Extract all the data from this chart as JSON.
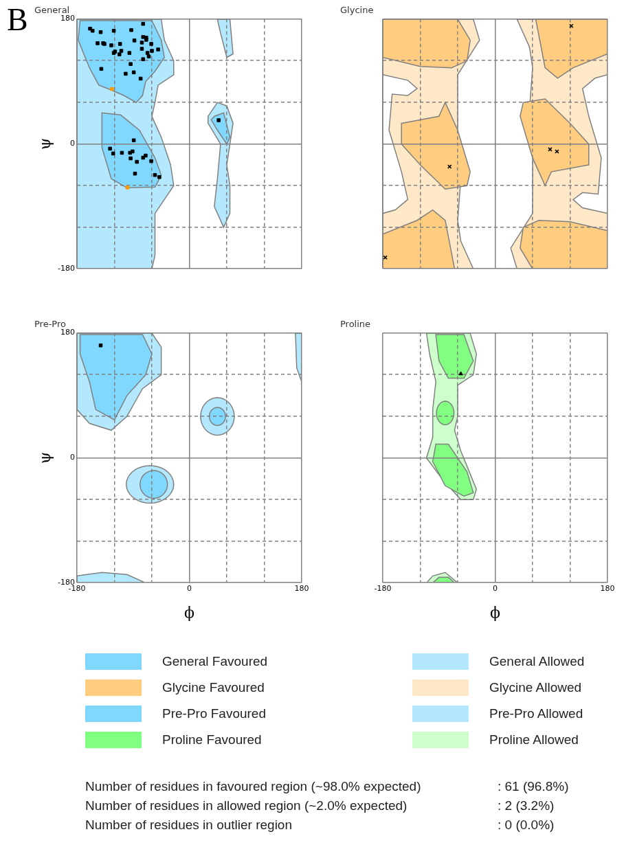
{
  "chart_data": [
    {
      "type": "scatter",
      "title": "General",
      "ylabel": "ψ",
      "annotations": [
        "B"
      ],
      "xlim": [
        -180,
        180
      ],
      "ylim": [
        -180,
        180
      ],
      "xticks": [
        -180,
        {
          "value": -120,
          "label": null
        },
        {
          "value": -60,
          "label": null
        },
        0,
        {
          "value": 60,
          "label": null
        },
        {
          "value": 120,
          "label": null
        },
        180
      ],
      "yticks": [
        -180,
        {
          "value": -120,
          "label": null
        },
        {
          "value": -60,
          "label": null
        },
        0,
        {
          "value": 60,
          "label": null
        },
        {
          "value": 120,
          "label": null
        },
        180
      ],
      "grid": true,
      "tick_labels": "y",
      "series": [
        {
          "color": "#000000",
          "marker": "square",
          "x": [
            -159,
            -155,
            -142,
            -121,
            -93,
            -74,
            -147,
            -138,
            -136,
            -125,
            -111,
            -88,
            -74,
            -69,
            -69,
            -76,
            -61,
            -50,
            -76,
            -67,
            -60,
            -65,
            -74,
            -96,
            -119,
            -112,
            -109,
            -121,
            -94,
            -141,
            -102,
            -89,
            -78,
            -89,
            -127,
            -122,
            -108,
            -95,
            -91,
            -94,
            -74,
            -70,
            -84,
            -61,
            -87,
            -55,
            -48,
            47
          ],
          "values": [
            166,
            163,
            161,
            163,
            164,
            173,
            145,
            145,
            144,
            142,
            144,
            149,
            154,
            153,
            150,
            146,
            144,
            136,
            137,
            131,
            134,
            126,
            122,
            131,
            133,
            129,
            134,
            131,
            115,
            108,
            101,
            103,
            94,
            5,
            -7,
            -14,
            -13,
            -13,
            -11,
            -21,
            -20,
            -17,
            -26,
            -25,
            -43,
            -45,
            -48,
            34
          ]
        },
        {
          "color": "#ff9900",
          "marker": "square",
          "x": [
            -124,
            -99
          ],
          "values": [
            79,
            -63
          ]
        }
      ]
    },
    {
      "type": "scatter",
      "title": "Glycine",
      "xlim": [
        -180,
        180
      ],
      "ylim": [
        -180,
        180
      ],
      "xticks": [
        -180,
        {
          "value": -120,
          "label": null
        },
        {
          "value": -60,
          "label": null
        },
        0,
        {
          "value": 60,
          "label": null
        },
        {
          "value": 120,
          "label": null
        },
        180
      ],
      "yticks": [
        -180,
        {
          "value": -120,
          "label": null
        },
        {
          "value": -60,
          "label": null
        },
        0,
        {
          "value": 60,
          "label": null
        },
        {
          "value": 120,
          "label": null
        },
        180
      ],
      "grid": true,
      "tick_labels": false,
      "series": [
        {
          "color": "#000000",
          "marker": "cross",
          "x": [
            122,
            -73,
            88,
            99,
            -176
          ],
          "values": [
            170,
            -33,
            -8,
            -11,
            -164
          ]
        }
      ]
    },
    {
      "type": "scatter",
      "title": "Pre-Pro",
      "xlabel": "ϕ",
      "ylabel": "ψ",
      "xlim": [
        -180,
        180
      ],
      "ylim": [
        -180,
        180
      ],
      "xticks": [
        -180,
        {
          "value": -120,
          "label": null
        },
        {
          "value": -60,
          "label": null
        },
        0,
        {
          "value": 60,
          "label": null
        },
        {
          "value": 120,
          "label": null
        },
        180
      ],
      "yticks": [
        -180,
        {
          "value": -120,
          "label": null
        },
        {
          "value": -60,
          "label": null
        },
        0,
        {
          "value": 60,
          "label": null
        },
        {
          "value": 120,
          "label": null
        },
        180
      ],
      "grid": true,
      "series": [
        {
          "color": "#000000",
          "marker": "square",
          "x": [
            -142
          ],
          "values": [
            162
          ]
        }
      ]
    },
    {
      "type": "scatter",
      "title": "Proline",
      "xlabel": "ϕ",
      "xlim": [
        -180,
        180
      ],
      "ylim": [
        -180,
        180
      ],
      "xticks": [
        -180,
        {
          "value": -120,
          "label": null
        },
        {
          "value": -60,
          "label": null
        },
        0,
        {
          "value": 60,
          "label": null
        },
        {
          "value": 120,
          "label": null
        },
        180
      ],
      "yticks": [
        -180,
        {
          "value": -120,
          "label": null
        },
        {
          "value": -60,
          "label": null
        },
        0,
        {
          "value": 60,
          "label": null
        },
        {
          "value": 120,
          "label": null
        },
        180
      ],
      "grid": true,
      "tick_labels": "x",
      "series": [
        {
          "color": "#000000",
          "marker": "triangle",
          "x": [
            -55
          ],
          "values": [
            121
          ]
        }
      ]
    },
    {
      "type": "other",
      "categories": [
        "General Favoured",
        "Glycine Favoured",
        "Pre-Pro Favoured",
        "Proline Favoured",
        "General Allowed",
        "Glycine Allowed",
        "Pre-Pro Allowed",
        "Proline Allowed"
      ],
      "colors": [
        "#80d8ff",
        "#ffcc80",
        "#80d8ff",
        "#80ff80",
        "#b3e8ff",
        "#ffe8c8",
        "#b3e8ff",
        "#ccffcc"
      ],
      "annotations": [
        "Number of residues in favoured region (~98.0% expected)",
        ": 61  (96.8%)",
        "Number of residues in allowed region (~2.0% expected)",
        ": 2  (3.2%)",
        "Number of residues in outlier region",
        ": 0  (0.0%)"
      ]
    }
  ]
}
